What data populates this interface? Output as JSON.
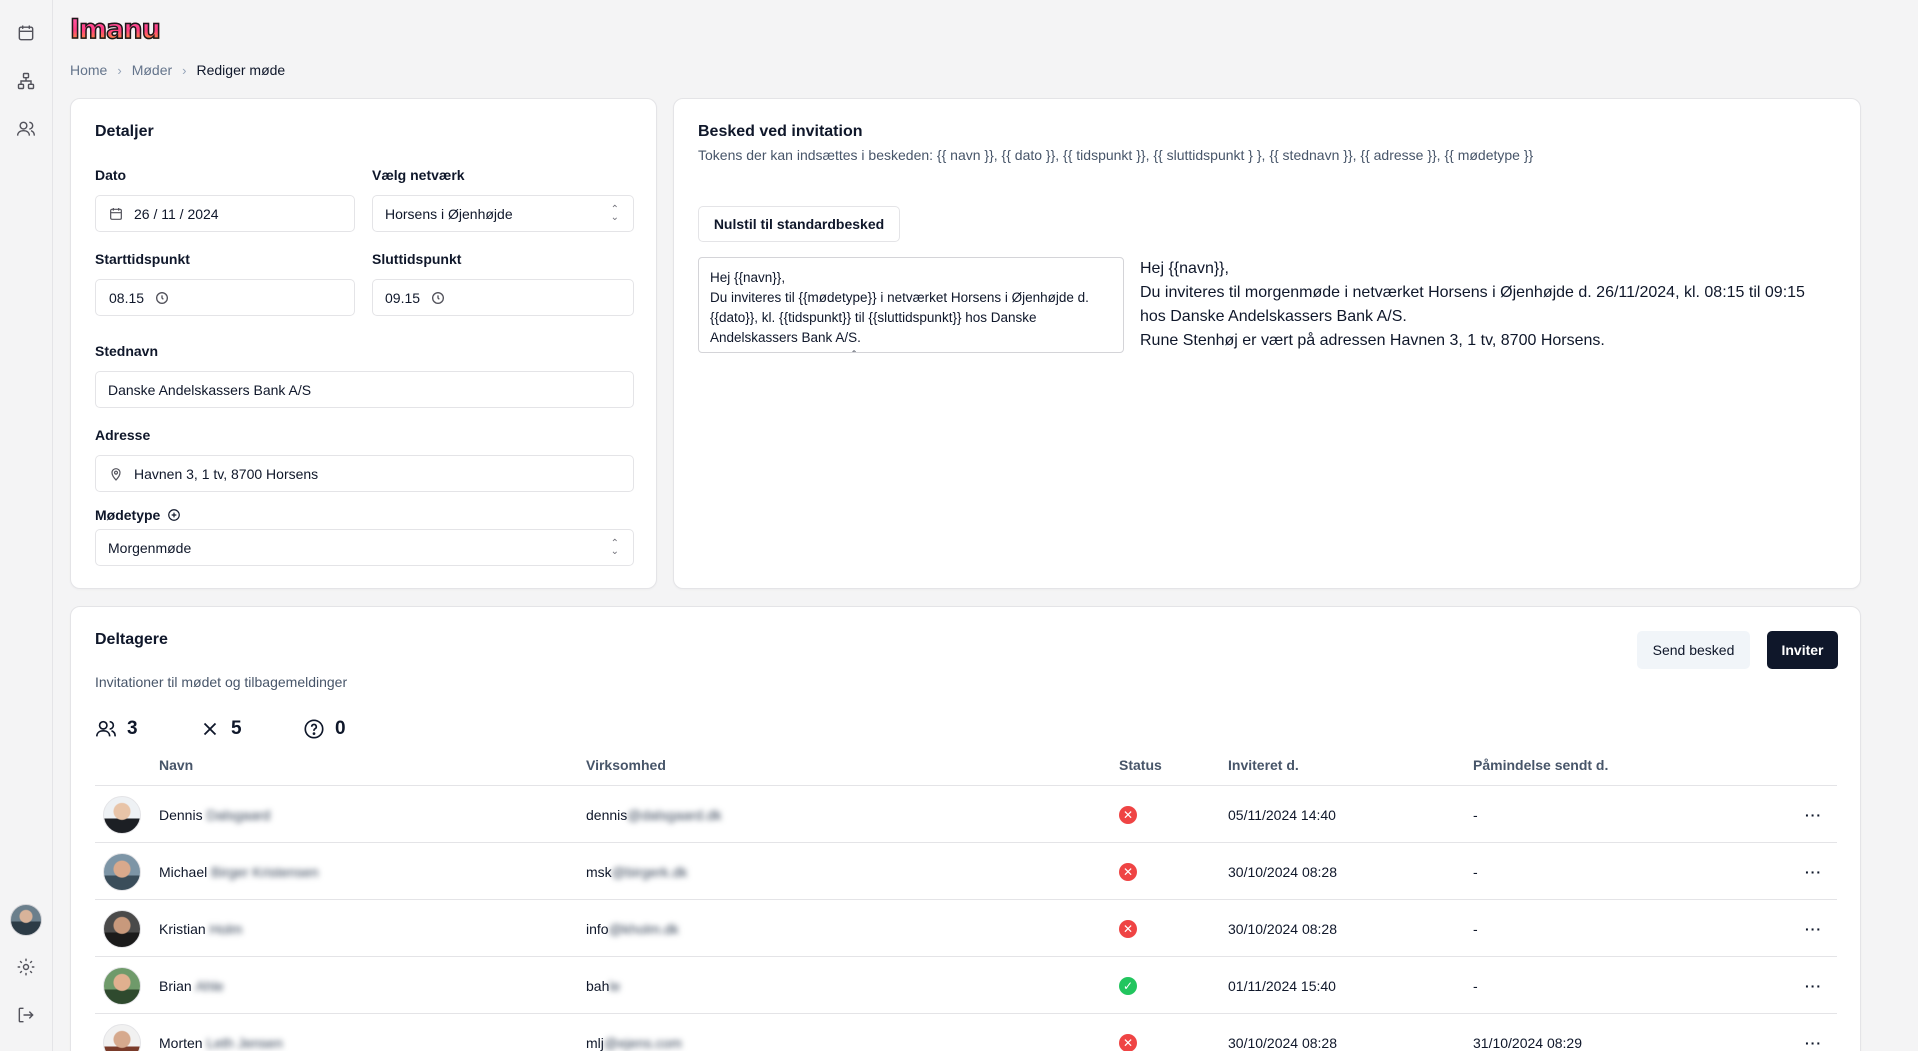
{
  "app": {
    "logo_text": "Imanu"
  },
  "breadcrumb": [
    "Home",
    "Møder",
    "Rediger møde"
  ],
  "details": {
    "title": "Detaljer",
    "date_label": "Dato",
    "date_value": "26 / 11 / 2024",
    "network_label": "Vælg netværk",
    "network_value": "Horsens i Øjenhøjde",
    "start_label": "Starttidspunkt",
    "start_value": "08.15",
    "end_label": "Sluttidspunkt",
    "end_value": "09.15",
    "place_label": "Stednavn",
    "place_value": "Danske Andelskassers Bank A/S",
    "address_label": "Adresse",
    "address_value": "Havnen 3, 1 tv, 8700 Horsens",
    "type_label": "Mødetype",
    "type_value": "Morgenmøde"
  },
  "invitation": {
    "title": "Besked ved invitation",
    "tokens": "Tokens der kan indsættes i beskeden: {{ navn }}, {{ dato }}, {{ tidspunkt }}, {{ sluttidspunkt } }, {{ stednavn }}, {{ adresse }}, {{ mødetype }}",
    "reset_button": "Nulstil til standardbesked",
    "template_text": "Hej {{navn}},\nDu inviteres til {{mødetype}} i netværket Horsens i Øjenhøjde d. {{dato}}, kl. {{tidspunkt}} til {{sluttidspunkt}} hos Danske Andelskassers Bank A/S.\nRune Stenhøj er vært på adressen {{adresse}}.",
    "preview_line1": "Hej {{navn}},",
    "preview_line2": "Du inviteres til morgenmøde i netværket Horsens i Øjenhøjde d. 26/11/2024, kl. 08:15 til 09:15 hos Danske Andelskassers Bank A/S.",
    "preview_line3": "Rune Stenhøj er vært på adressen Havnen 3, 1 tv, 8700 Horsens."
  },
  "participants": {
    "title": "Deltagere",
    "subtitle": "Invitationer til mødet og tilbagemeldinger",
    "send_button": "Send besked",
    "invite_button": "Inviter",
    "stats": {
      "accepted": "3",
      "declined": "5",
      "unknown": "0"
    },
    "columns": [
      "Navn",
      "Virksomhed",
      "Status",
      "Inviteret d.",
      "Påmindelse sendt d."
    ],
    "rows": [
      {
        "first": "Dennis",
        "last": "Dalsgaard",
        "email_start": "dennis",
        "email_rest": "@dalsgaard.dk",
        "status": "declined",
        "invited": "05/11/2024 14:40",
        "reminder": "-"
      },
      {
        "first": "Michael",
        "last": "Birger Kristensen",
        "email_start": "msk",
        "email_rest": "@birgerk.dk",
        "status": "declined",
        "invited": "30/10/2024 08:28",
        "reminder": "-"
      },
      {
        "first": "Kristian",
        "last": "Holm",
        "email_start": "info",
        "email_rest": "@kholm.dk",
        "status": "declined",
        "invited": "30/10/2024 08:28",
        "reminder": "-"
      },
      {
        "first": "Brian",
        "last": "Ahle",
        "email_start": "bah",
        "email_rest": "le",
        "status": "accepted",
        "invited": "01/11/2024 15:40",
        "reminder": "-"
      },
      {
        "first": "Morten",
        "last": "Leth Jensen",
        "email_start": "mlj",
        "email_rest": "@ejens.com",
        "status": "declined",
        "invited": "30/10/2024 08:28",
        "reminder": "31/10/2024 08:29"
      }
    ]
  },
  "colors": {
    "declined": "#ef4444",
    "accepted": "#22c55e",
    "primary": "#0f172a"
  },
  "icons": {
    "rail_top": [
      "calendar-icon",
      "network-icon",
      "users-icon"
    ],
    "rail_bottom": [
      "settings-icon",
      "logout-icon"
    ]
  }
}
